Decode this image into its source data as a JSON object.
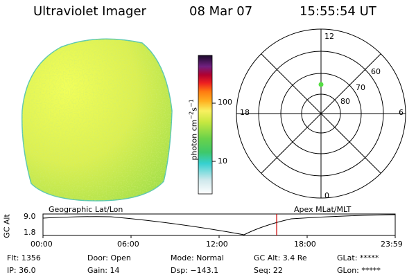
{
  "header": {
    "instrument": "Ultraviolet Imager",
    "date": "08 Mar 07",
    "time": "15:55:54 UT"
  },
  "colorbar": {
    "unit_label": "photon cm^-2 s^-1",
    "ticks": [
      "100",
      "10"
    ]
  },
  "polar": {
    "mlt_labels": {
      "top": "12",
      "left": "18",
      "right": "6",
      "bottom": "0"
    },
    "lat_labels": [
      "60",
      "70",
      "80"
    ],
    "marker_color": "#55dd44"
  },
  "timeline": {
    "left_label": "Geographic Lat/Lon",
    "right_label": "Apex MLat/MLT",
    "axis_label": "GC Alt",
    "y_max": "9.0",
    "y_min": "1.8",
    "x_ticks": [
      "00:00",
      "06:00",
      "12:00",
      "18:00",
      "23:59"
    ],
    "current_marker_color": "#cc0000"
  },
  "footer": {
    "flt": "Flt: 1356",
    "ip": "IP: 36.0",
    "door": "Door: Open",
    "gain": "Gain: 14",
    "mode": "Mode: Normal",
    "dsp": "Dsp: −143.1",
    "gcalt": "GC Alt: 3.4 Re",
    "seq": "Seq: 22",
    "glat": "GLat: *****",
    "glon": "GLon: *****"
  }
}
